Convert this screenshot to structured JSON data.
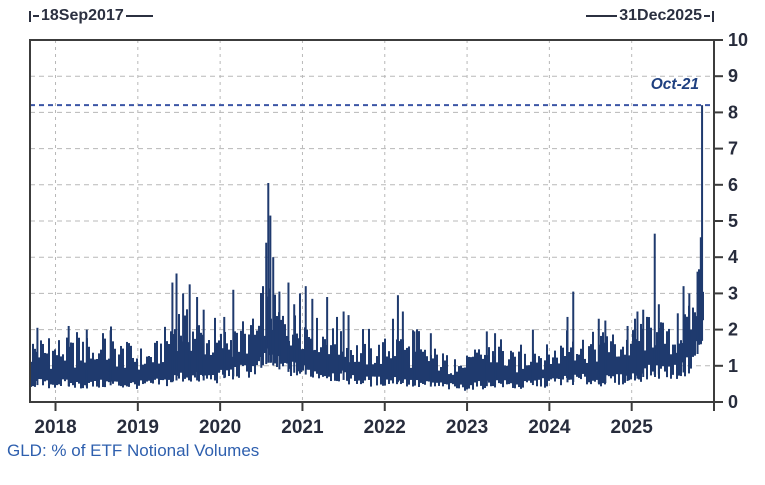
{
  "page": {
    "background": "#ffffff"
  },
  "header": {
    "range_start_label": "18Sep2017",
    "range_end_label": "31Dec2025"
  },
  "annotation": {
    "label": "Oct-21"
  },
  "caption": {
    "text": "GLD: % of ETF Notional Volumes"
  },
  "style": {
    "series_color": "#1f3a6e",
    "reference_line_color": "#3b55a5",
    "grid_color": "#b8b8b8",
    "frame_color": "#3c3c3c",
    "tick_label_color": "#272c3c",
    "range_label_color": "#2b3040",
    "annotation_color": "#1f4080",
    "caption_color": "#2e5fae"
  },
  "chart_data": {
    "type": "area",
    "title": "GLD: % of ETF Notional Volumes",
    "subtitle": "Daily series shown as dense vertical oscillation band",
    "x_domain_labels": {
      "start": "18Sep2017",
      "end": "31Dec2025"
    },
    "x_range_years": [
      2017.69,
      2026.0
    ],
    "x_ticks": [
      2018,
      2019,
      2020,
      2021,
      2022,
      2023,
      2024,
      2025
    ],
    "x_axis_end_tick": 2026,
    "ylim": [
      0,
      10
    ],
    "y_ticks": [
      0,
      1,
      2,
      3,
      4,
      5,
      6,
      7,
      8,
      9,
      10
    ],
    "grid": "dashed-gray, vertical at year starts, horizontal at integers 1-9",
    "legend_position": "none",
    "reference_line": {
      "value": 8.2,
      "style": "dashed",
      "label": "Oct-21"
    },
    "latest_point": {
      "date_label": "Oct-21",
      "value": 8.2
    },
    "envelope_monthly": [
      [
        2017.69,
        0.55,
        1.8
      ],
      [
        2017.8,
        0.55,
        1.9
      ],
      [
        2017.92,
        0.5,
        1.7
      ],
      [
        2018.05,
        0.55,
        1.85
      ],
      [
        2018.2,
        0.5,
        1.75
      ],
      [
        2018.35,
        0.5,
        1.9
      ],
      [
        2018.5,
        0.5,
        1.65
      ],
      [
        2018.65,
        0.55,
        1.85
      ],
      [
        2018.8,
        0.5,
        1.7
      ],
      [
        2018.95,
        0.5,
        1.6
      ],
      [
        2019.1,
        0.5,
        1.5
      ],
      [
        2019.25,
        0.55,
        1.75
      ],
      [
        2019.38,
        0.6,
        2.3
      ],
      [
        2019.47,
        0.7,
        2.9
      ],
      [
        2019.58,
        0.75,
        2.6
      ],
      [
        2019.7,
        0.7,
        2.5
      ],
      [
        2019.82,
        0.7,
        2.2
      ],
      [
        2019.95,
        0.7,
        1.95
      ],
      [
        2020.08,
        0.8,
        2.1
      ],
      [
        2020.2,
        0.85,
        2.0
      ],
      [
        2020.33,
        0.9,
        2.1
      ],
      [
        2020.45,
        1.0,
        2.3
      ],
      [
        2020.54,
        1.2,
        3.0
      ],
      [
        2020.6,
        1.3,
        3.3
      ],
      [
        2020.68,
        1.1,
        2.9
      ],
      [
        2020.78,
        1.0,
        2.6
      ],
      [
        2020.9,
        0.95,
        2.5
      ],
      [
        2021.02,
        0.9,
        2.6
      ],
      [
        2021.15,
        0.85,
        2.4
      ],
      [
        2021.3,
        0.8,
        2.2
      ],
      [
        2021.45,
        0.75,
        2.0
      ],
      [
        2021.6,
        0.65,
        1.8
      ],
      [
        2021.75,
        0.6,
        1.65
      ],
      [
        2021.9,
        0.6,
        1.7
      ],
      [
        2022.05,
        0.6,
        1.85
      ],
      [
        2022.18,
        0.65,
        2.0
      ],
      [
        2022.3,
        0.55,
        1.75
      ],
      [
        2022.45,
        0.5,
        1.6
      ],
      [
        2022.6,
        0.5,
        1.55
      ],
      [
        2022.75,
        0.45,
        1.35
      ],
      [
        2022.9,
        0.42,
        1.25
      ],
      [
        2023.05,
        0.45,
        1.35
      ],
      [
        2023.2,
        0.5,
        1.7
      ],
      [
        2023.35,
        0.55,
        1.75
      ],
      [
        2023.5,
        0.5,
        1.45
      ],
      [
        2023.65,
        0.45,
        1.4
      ],
      [
        2023.8,
        0.55,
        1.75
      ],
      [
        2023.95,
        0.55,
        1.6
      ],
      [
        2024.1,
        0.6,
        1.65
      ],
      [
        2024.25,
        0.65,
        2.05
      ],
      [
        2024.4,
        0.65,
        1.9
      ],
      [
        2024.55,
        0.6,
        1.95
      ],
      [
        2024.7,
        0.62,
        2.05
      ],
      [
        2024.85,
        0.65,
        1.9
      ],
      [
        2025.0,
        0.7,
        2.0
      ],
      [
        2025.12,
        0.8,
        2.35
      ],
      [
        2025.25,
        0.88,
        2.45
      ],
      [
        2025.38,
        0.9,
        2.25
      ],
      [
        2025.5,
        0.85,
        1.95
      ],
      [
        2025.6,
        0.9,
        2.3
      ],
      [
        2025.7,
        1.1,
        2.7
      ],
      [
        2025.78,
        1.4,
        3.2
      ],
      [
        2025.83,
        1.8,
        4.2
      ],
      [
        2025.87,
        2.1,
        4.6
      ]
    ],
    "spikes": [
      [
        2017.78,
        2.05
      ],
      [
        2018.16,
        2.1
      ],
      [
        2018.38,
        2.0
      ],
      [
        2018.67,
        1.98
      ],
      [
        2019.42,
        3.3
      ],
      [
        2019.47,
        3.55
      ],
      [
        2019.55,
        3.0
      ],
      [
        2019.63,
        3.25
      ],
      [
        2019.72,
        2.9
      ],
      [
        2019.8,
        2.55
      ],
      [
        2020.05,
        2.35
      ],
      [
        2020.16,
        3.1
      ],
      [
        2020.5,
        2.9
      ],
      [
        2020.56,
        4.4
      ],
      [
        2020.585,
        6.05
      ],
      [
        2020.61,
        5.15
      ],
      [
        2020.645,
        4.0
      ],
      [
        2020.72,
        3.05
      ],
      [
        2020.83,
        3.3
      ],
      [
        2020.9,
        2.7
      ],
      [
        2020.97,
        3.0
      ],
      [
        2021.04,
        3.2
      ],
      [
        2021.12,
        2.85
      ],
      [
        2021.3,
        2.9
      ],
      [
        2021.42,
        2.35
      ],
      [
        2021.5,
        2.5
      ],
      [
        2021.56,
        2.4
      ],
      [
        2022.1,
        2.3
      ],
      [
        2022.16,
        2.95
      ],
      [
        2022.22,
        2.5
      ],
      [
        2022.36,
        1.95
      ],
      [
        2022.56,
        1.9
      ],
      [
        2023.24,
        1.95
      ],
      [
        2023.34,
        1.9
      ],
      [
        2023.8,
        2.0
      ],
      [
        2024.22,
        2.35
      ],
      [
        2024.29,
        3.05
      ],
      [
        2024.6,
        2.3
      ],
      [
        2024.68,
        2.25
      ],
      [
        2024.95,
        2.1
      ],
      [
        2025.07,
        2.5
      ],
      [
        2025.14,
        2.55
      ],
      [
        2025.28,
        4.65
      ],
      [
        2025.33,
        2.7
      ],
      [
        2025.56,
        2.45
      ],
      [
        2025.63,
        3.2
      ],
      [
        2025.7,
        3.0
      ],
      [
        2025.8,
        3.6
      ],
      [
        2025.84,
        4.55
      ],
      [
        2025.855,
        8.2
      ]
    ]
  }
}
